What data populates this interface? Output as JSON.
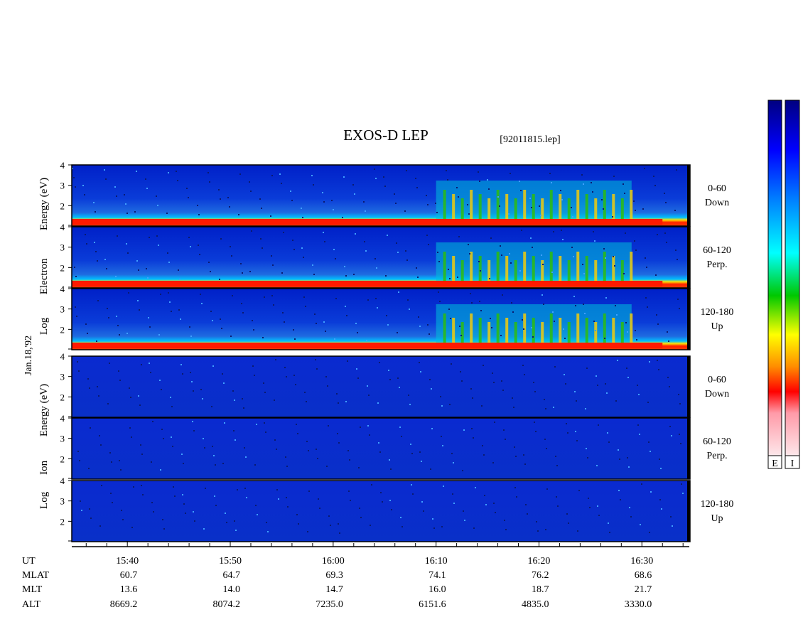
{
  "chart_data": {
    "type": "heatmap",
    "title": "EXOS-D LEP",
    "file_label": "[92011815.lep]",
    "date_label": "Jan.18,'92",
    "electron_ylabel": [
      "Log",
      "Electron",
      "Energy (eV)"
    ],
    "ion_ylabel": [
      "Log",
      "Ion",
      "Energy (eV)"
    ],
    "y_ticks": [
      "4",
      "3",
      "2"
    ],
    "ylim_log_eV": [
      1,
      4
    ],
    "x_ticks": [
      "15:40",
      "15:50",
      "16:00",
      "16:10",
      "16:20",
      "16:30"
    ],
    "panels": [
      {
        "group": "electron",
        "angle": "0-60",
        "dir": "Down"
      },
      {
        "group": "electron",
        "angle": "60-120",
        "dir": "Perp."
      },
      {
        "group": "electron",
        "angle": "120-180",
        "dir": "Up"
      },
      {
        "group": "ion",
        "angle": "0-60",
        "dir": "Down"
      },
      {
        "group": "ion",
        "angle": "60-120",
        "dir": "Perp."
      },
      {
        "group": "ion",
        "angle": "120-180",
        "dir": "Up"
      }
    ],
    "orbit_table": {
      "row_labels": [
        "UT",
        "MLAT",
        "MLT",
        "ALT"
      ],
      "MLAT": [
        "60.7",
        "64.7",
        "69.3",
        "74.1",
        "76.2",
        "68.6"
      ],
      "MLT": [
        "13.6",
        "14.0",
        "14.7",
        "16.0",
        "18.7",
        "21.7"
      ],
      "ALT": [
        "8669.2",
        "8074.2",
        "7235.0",
        "6151.6",
        "4835.0",
        "3330.0"
      ]
    },
    "colorbar_labels": [
      "E",
      "I"
    ],
    "colormap": [
      "#fde7ea",
      "#ff0000",
      "#ff8c00",
      "#ffff00",
      "#00c800",
      "#00ffff",
      "#0000ff",
      "#000080"
    ]
  }
}
